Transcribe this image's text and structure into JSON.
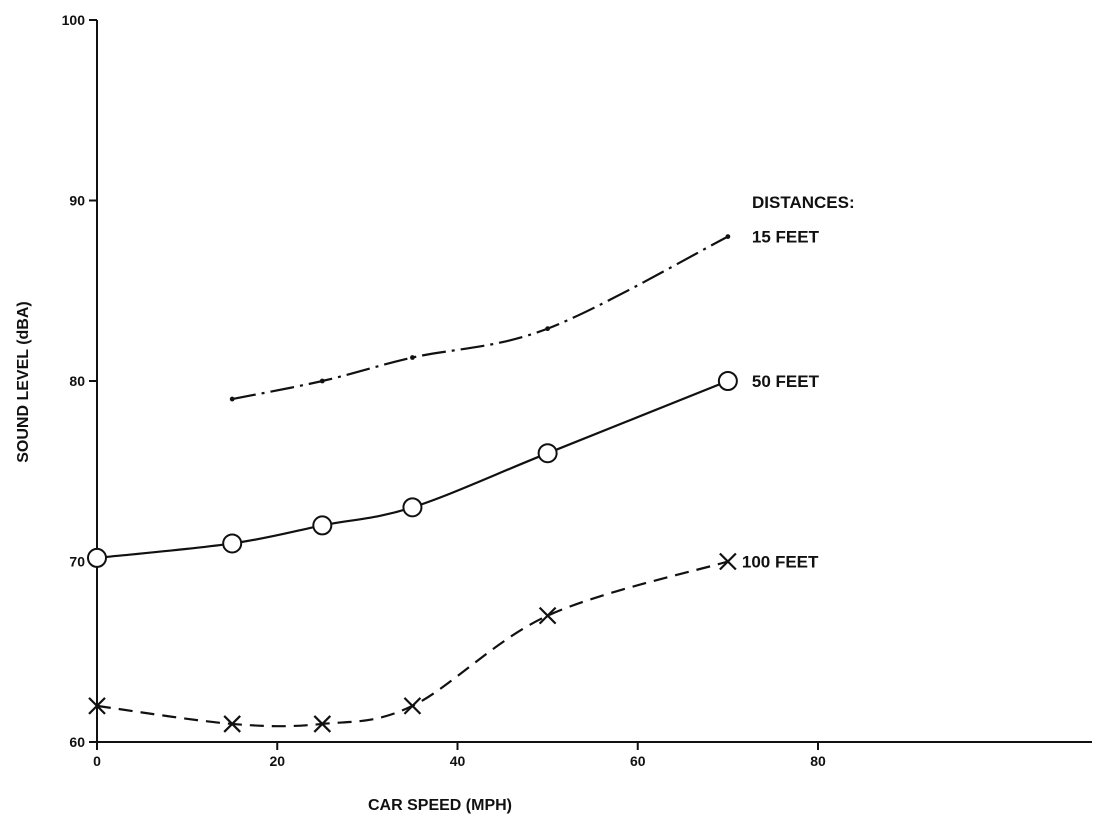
{
  "chart_data": {
    "type": "line",
    "title": "",
    "xlabel": "CAR SPEED (MPH)",
    "ylabel": "SOUND LEVEL (dBA)",
    "xlim": [
      0,
      80
    ],
    "ylim": [
      60,
      100
    ],
    "x_ticks": [
      "0",
      "20",
      "40",
      "60",
      "80"
    ],
    "y_ticks": [
      "60",
      "70",
      "80",
      "90",
      "100"
    ],
    "grid": false,
    "legend_title": "DISTANCES:",
    "legend_placement": "right, labels at line ends",
    "series": [
      {
        "name": "15 FEET",
        "marker": "dot",
        "line_style": "dash-dot",
        "x": [
          15,
          25,
          35,
          50,
          70
        ],
        "y": [
          79,
          80,
          81.3,
          82.9,
          88
        ]
      },
      {
        "name": "50 FEET",
        "marker": "circle",
        "line_style": "solid",
        "x": [
          0,
          15,
          25,
          35,
          50,
          70
        ],
        "y": [
          70.2,
          71,
          72,
          73,
          76,
          80
        ]
      },
      {
        "name": "100 FEET",
        "marker": "x",
        "line_style": "dashed",
        "x": [
          0,
          15,
          25,
          35,
          50,
          70
        ],
        "y": [
          62,
          61,
          61,
          62,
          67,
          70
        ]
      }
    ]
  }
}
